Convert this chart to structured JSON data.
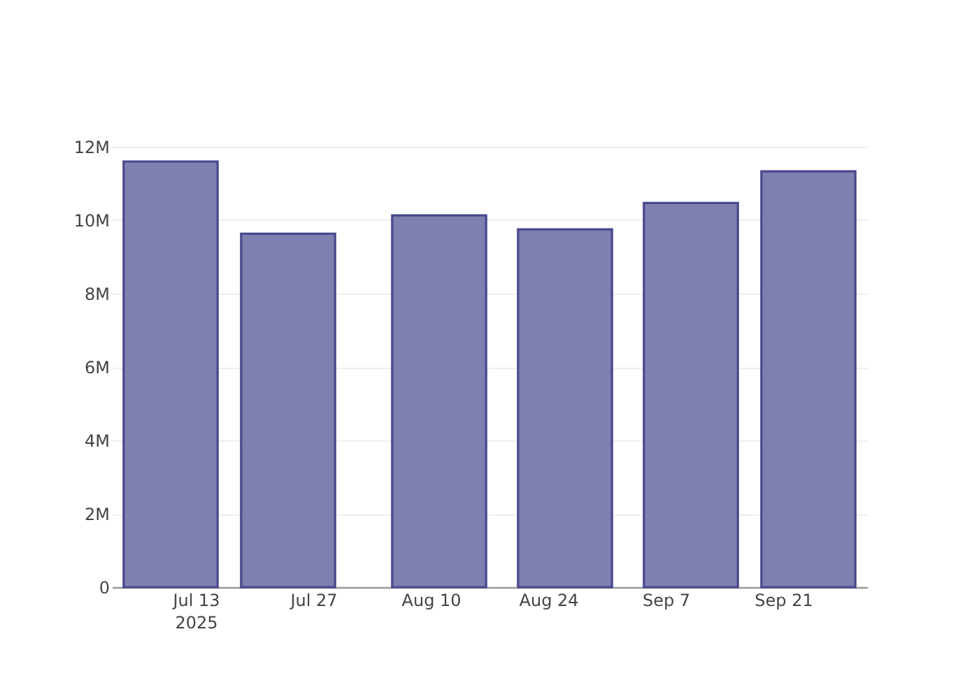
{
  "chart_data": {
    "type": "bar",
    "x": [
      "2025-07-10",
      "2025-07-24",
      "2025-08-11",
      "2025-08-26",
      "2025-09-10",
      "2025-09-24"
    ],
    "values": [
      11600000,
      9630000,
      10130000,
      9750000,
      10470000,
      11330000
    ],
    "color": "#7f7fb0",
    "xlim": [
      "2025-07-03",
      "2025-10-01"
    ],
    "xticks": [
      {
        "value": "2025-07-13",
        "label": "Jul 13\n2025"
      },
      {
        "value": "2025-07-27",
        "label": "Jul 27"
      },
      {
        "value": "2025-08-10",
        "label": "Aug 10"
      },
      {
        "value": "2025-08-24",
        "label": "Aug 24"
      },
      {
        "value": "2025-09-07",
        "label": "Sep 7"
      },
      {
        "value": "2025-09-21",
        "label": "Sep 21"
      }
    ],
    "ylim": [
      0,
      12000000
    ],
    "yticks": [
      {
        "value": 0,
        "label": "0"
      },
      {
        "value": 2000000,
        "label": "2M"
      },
      {
        "value": 4000000,
        "label": "4M"
      },
      {
        "value": 6000000,
        "label": "6M"
      },
      {
        "value": 8000000,
        "label": "8M"
      },
      {
        "value": 10000000,
        "label": "10M"
      },
      {
        "value": 12000000,
        "label": "12M"
      }
    ],
    "grid": "y"
  }
}
